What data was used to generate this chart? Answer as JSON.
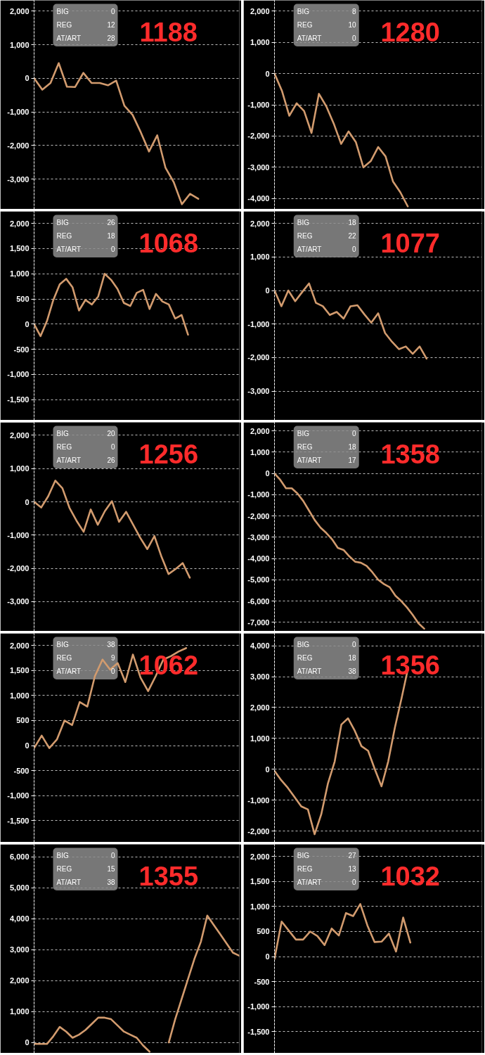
{
  "chart_data": [
    {
      "type": "line",
      "title": "1188",
      "categories": [
        null,
        null,
        null,
        null,
        null,
        null,
        null,
        null,
        null,
        null,
        null,
        null,
        null,
        null,
        null,
        null,
        null,
        null,
        null,
        null,
        null,
        null,
        null,
        null,
        null,
        null
      ],
      "color": "#d29b6e",
      "values": [
        0,
        -340,
        -140,
        450,
        -250,
        -260,
        160,
        -140,
        -140,
        -210,
        -70,
        -820,
        -1090,
        -1610,
        -2180,
        -1700,
        -2660,
        -3090,
        -3750,
        -3440,
        -3590,
        null,
        null,
        null,
        null,
        null
      ],
      "ylim": [
        -3900,
        2320
      ],
      "yticks": [
        {
          "value": 2000,
          "label": "2,000"
        },
        {
          "value": 1000,
          "label": "1,000"
        },
        0,
        {
          "value": -1000,
          "label": "-1,000"
        },
        {
          "value": -2000,
          "label": "-2,000"
        },
        {
          "value": -3000,
          "label": "-3,000"
        }
      ],
      "grid": "y",
      "tick_labels": "y",
      "annotations": [
        "BIG",
        "0",
        "REG",
        "12",
        "AT/ART",
        "28"
      ]
    },
    {
      "type": "line",
      "title": "1280",
      "categories": [
        null,
        null,
        null,
        null,
        null,
        null,
        null,
        null,
        null,
        null,
        null,
        null,
        null,
        null,
        null,
        null,
        null,
        null,
        null,
        null,
        null,
        null,
        null,
        null,
        null,
        null,
        null,
        null,
        null
      ],
      "color": "#d29b6e",
      "values": [
        0,
        -550,
        -1350,
        -950,
        -1200,
        -1900,
        -650,
        -1050,
        -1600,
        -2250,
        -1850,
        -2200,
        -3000,
        -2800,
        -2350,
        -2650,
        -3450,
        -3800,
        -4250,
        null,
        null,
        null,
        null,
        null,
        null,
        null,
        null,
        null,
        null
      ],
      "ylim": [
        -4340,
        2340
      ],
      "yticks": [
        {
          "value": 2000,
          "label": "2,000"
        },
        {
          "value": 1000,
          "label": "1,000"
        },
        0,
        {
          "value": -1000,
          "label": "-1,000"
        },
        {
          "value": -2000,
          "label": "-2,000"
        },
        {
          "value": -3000,
          "label": "-3,000"
        },
        {
          "value": -4000,
          "label": "-4,000"
        }
      ],
      "grid": "y",
      "tick_labels": "y",
      "annotations": [
        "BIG",
        "8",
        "REG",
        "10",
        "AT/ART",
        "0"
      ]
    },
    {
      "type": "line",
      "title": "1068",
      "categories": [
        null,
        null,
        null,
        null,
        null,
        null,
        null,
        null,
        null,
        null,
        null,
        null,
        null,
        null,
        null,
        null,
        null,
        null,
        null,
        null,
        null,
        null,
        null,
        null,
        null,
        null,
        null,
        null,
        null,
        null,
        null,
        null,
        null
      ],
      "color": "#d29b6e",
      "values": [
        0,
        -240,
        60,
        480,
        790,
        900,
        730,
        270,
        480,
        390,
        550,
        1000,
        880,
        700,
        420,
        360,
        620,
        680,
        300,
        600,
        450,
        390,
        110,
        180,
        -210,
        null,
        null,
        null,
        null,
        null,
        null,
        null,
        null
      ],
      "ylim": [
        -1910,
        2240
      ],
      "yticks": [
        {
          "value": 2000,
          "label": "2,000"
        },
        {
          "value": 1500,
          "label": "1,500"
        },
        {
          "value": 1000,
          "label": "1,000"
        },
        500,
        0,
        -500,
        {
          "value": -1000,
          "label": "-1,000"
        },
        {
          "value": -1500,
          "label": "-1,500"
        }
      ],
      "grid": "y",
      "tick_labels": "y",
      "annotations": [
        "BIG",
        "26",
        "REG",
        "18",
        "AT/ART",
        "0"
      ]
    },
    {
      "type": "line",
      "title": "1077",
      "categories": [
        null,
        null,
        null,
        null,
        null,
        null,
        null,
        null,
        null,
        null,
        null,
        null,
        null,
        null,
        null,
        null,
        null,
        null,
        null,
        null,
        null,
        null,
        null,
        null,
        null,
        null,
        null,
        null,
        null,
        null,
        null
      ],
      "color": "#d29b6e",
      "values": [
        0,
        -470,
        0,
        -320,
        -50,
        210,
        -370,
        -470,
        -730,
        -640,
        -840,
        -470,
        -440,
        -710,
        -960,
        -680,
        -1270,
        -1530,
        -1750,
        -1670,
        -1890,
        -1670,
        -2030,
        null,
        null,
        null,
        null,
        null,
        null,
        null,
        null
      ],
      "ylim": [
        -3870,
        2360
      ],
      "yticks": [
        {
          "value": 2000,
          "label": "2,000"
        },
        {
          "value": 1000,
          "label": "1,000"
        },
        0,
        {
          "value": -1000,
          "label": "-1,000"
        },
        {
          "value": -2000,
          "label": "-2,000"
        },
        {
          "value": -3000,
          "label": "-3,000"
        }
      ],
      "grid": "y",
      "tick_labels": "y",
      "annotations": [
        "BIG",
        "18",
        "REG",
        "22",
        "AT/ART",
        "0"
      ]
    },
    {
      "type": "line",
      "title": "1256",
      "categories": [
        null,
        null,
        null,
        null,
        null,
        null,
        null,
        null,
        null,
        null,
        null,
        null,
        null,
        null,
        null,
        null,
        null,
        null,
        null,
        null,
        null,
        null,
        null,
        null,
        null,
        null,
        null,
        null,
        null,
        null
      ],
      "color": "#d29b6e",
      "values": [
        0,
        -170,
        170,
        640,
        410,
        -180,
        -570,
        -900,
        -230,
        -690,
        -280,
        20,
        -600,
        -300,
        -690,
        -1080,
        -1420,
        -1030,
        -1650,
        -2170,
        -2020,
        -1840,
        -2280,
        null,
        null,
        null,
        null,
        null,
        null,
        null
      ],
      "ylim": [
        -3890,
        2390
      ],
      "yticks": [
        {
          "value": 2000,
          "label": "2,000"
        },
        {
          "value": 1000,
          "label": "1,000"
        },
        0,
        {
          "value": -1000,
          "label": "-1,000"
        },
        {
          "value": -2000,
          "label": "-2,000"
        },
        {
          "value": -3000,
          "label": "-3,000"
        }
      ],
      "grid": "y",
      "tick_labels": "y",
      "annotations": [
        "BIG",
        "20",
        "REG",
        "0",
        "AT/ART",
        "26"
      ]
    },
    {
      "type": "line",
      "title": "1358",
      "categories": [
        null,
        null,
        null,
        null,
        null,
        null,
        null,
        null,
        null,
        null,
        null,
        null,
        null,
        null,
        null,
        null,
        null,
        null,
        null,
        null,
        null,
        null,
        null,
        null,
        null,
        null,
        null,
        null,
        null,
        null,
        null,
        null,
        null,
        null,
        null,
        null,
        null
      ],
      "color": "#d29b6e",
      "values": [
        0,
        -300,
        -700,
        -700,
        -950,
        -1300,
        -1750,
        -2200,
        -2550,
        -2800,
        -3100,
        -3500,
        -3600,
        -3900,
        -4150,
        -4200,
        -4350,
        -4650,
        -5000,
        -5200,
        -5350,
        -5750,
        -6000,
        -6300,
        -6650,
        -7050,
        -7300,
        null,
        null,
        null,
        null,
        null,
        null,
        null,
        null,
        null,
        null
      ],
      "ylim": [
        -7420,
        2400
      ],
      "yticks": [
        {
          "value": 2000,
          "label": "2,000"
        },
        {
          "value": 1000,
          "label": "1,000"
        },
        0,
        {
          "value": -1000,
          "label": "-1,000"
        },
        {
          "value": -2000,
          "label": "-2,000"
        },
        {
          "value": -3000,
          "label": "-3,000"
        },
        {
          "value": -4000,
          "label": "-4,000"
        },
        {
          "value": -5000,
          "label": "-5,000"
        },
        {
          "value": -6000,
          "label": "-6,000"
        },
        {
          "value": -7000,
          "label": "-7,000"
        }
      ],
      "grid": "y",
      "tick_labels": "y",
      "annotations": [
        "BIG",
        "0",
        "REG",
        "18",
        "AT/ART",
        "17"
      ]
    },
    {
      "type": "line",
      "title": "1062",
      "categories": [
        null,
        null,
        null,
        null,
        null,
        null,
        null,
        null,
        null,
        null,
        null,
        null,
        null,
        null,
        null,
        null,
        null,
        null,
        null,
        null,
        null,
        null,
        null,
        null,
        null,
        null,
        null,
        null
      ],
      "color": "#d29b6e",
      "values": [
        -50,
        200,
        -50,
        120,
        500,
        410,
        870,
        780,
        1390,
        1720,
        1520,
        1650,
        1270,
        1820,
        1360,
        1090,
        1390,
        1720,
        1790,
        1880,
        1950,
        null,
        null,
        null,
        null,
        null,
        null,
        null
      ],
      "ylim": [
        -1935,
        2245
      ],
      "yticks": [
        {
          "value": 2000,
          "label": "2,000"
        },
        {
          "value": 1500,
          "label": "1,500"
        },
        {
          "value": 1000,
          "label": "1,000"
        },
        500,
        0,
        -500,
        {
          "value": -1000,
          "label": "-1,000"
        },
        {
          "value": -1500,
          "label": "-1,500"
        }
      ],
      "grid": "y",
      "tick_labels": "y",
      "annotations": [
        "BIG",
        "38",
        "REG",
        "9",
        "AT/ART",
        "0"
      ]
    },
    {
      "type": "line",
      "title": "1356",
      "categories": [
        null,
        null,
        null,
        null,
        null,
        null,
        null,
        null,
        null,
        null,
        null,
        null,
        null,
        null,
        null,
        null,
        null,
        null,
        null,
        null,
        null,
        null,
        null,
        null,
        null,
        null,
        null,
        null,
        null,
        null,
        null,
        null
      ],
      "color": "#d29b6e",
      "values": [
        -50,
        -350,
        -600,
        -900,
        -1200,
        -1300,
        -2100,
        -1450,
        -450,
        250,
        1450,
        1650,
        1250,
        750,
        600,
        0,
        -550,
        250,
        1350,
        2300,
        3300,
        null,
        null,
        null,
        null,
        null,
        null,
        null,
        null,
        null,
        null,
        null
      ],
      "ylim": [
        -2360,
        4400
      ],
      "yticks": [
        {
          "value": 4000,
          "label": "4,000"
        },
        {
          "value": 3000,
          "label": "3,000"
        },
        {
          "value": 2000,
          "label": "2,000"
        },
        {
          "value": 1000,
          "label": "1,000"
        },
        0,
        {
          "value": -1000,
          "label": "-1,000"
        },
        {
          "value": -2000,
          "label": "-2,000"
        }
      ],
      "grid": "y",
      "tick_labels": "y",
      "annotations": [
        "BIG",
        "0",
        "REG",
        "18",
        "AT/ART",
        "38"
      ]
    },
    {
      "type": "line",
      "title": "1355",
      "categories": [
        null,
        null,
        null,
        null,
        null,
        null,
        null,
        null,
        null,
        null,
        null,
        null,
        null,
        null,
        null,
        null,
        null,
        null,
        null,
        null,
        null,
        null,
        null,
        null,
        null,
        null,
        null,
        null,
        null,
        null,
        null,
        null,
        null
      ],
      "color": "#d29b6e",
      "values": [
        -50,
        -50,
        -50,
        200,
        500,
        350,
        150,
        250,
        400,
        600,
        800,
        800,
        750,
        550,
        350,
        250,
        150,
        -100,
        -300,
        null,
        null,
        0,
        750,
        1400,
        2050,
        2700,
        3250,
        4100,
        3800,
        3500,
        3200,
        2900,
        2800
      ],
      "ylim": [
        -350,
        6400
      ],
      "yticks": [
        {
          "value": 6000,
          "label": "6,000"
        },
        {
          "value": 5000,
          "label": "5,000"
        },
        {
          "value": 4000,
          "label": "4,000"
        },
        {
          "value": 3000,
          "label": "3,000"
        },
        {
          "value": 2000,
          "label": "2,000"
        },
        {
          "value": 1000,
          "label": "1,000"
        },
        0
      ],
      "grid": "y",
      "tick_labels": "y",
      "annotations": [
        "BIG",
        "0",
        "REG",
        "15",
        "AT/ART",
        "38"
      ]
    },
    {
      "type": "line",
      "title": "1032",
      "categories": [
        null,
        null,
        null,
        null,
        null,
        null,
        null,
        null,
        null,
        null,
        null,
        null,
        null,
        null,
        null,
        null,
        null,
        null,
        null,
        null,
        null,
        null,
        null,
        null,
        null,
        null,
        null,
        null,
        null,
        null
      ],
      "color": "#d29b6e",
      "values": [
        -50,
        700,
        520,
        340,
        340,
        500,
        410,
        230,
        560,
        420,
        870,
        810,
        1050,
        620,
        290,
        300,
        460,
        100,
        780,
        280,
        null,
        null,
        null,
        null,
        null,
        null,
        null,
        null,
        null,
        null
      ],
      "ylim": [
        -1935,
        2245
      ],
      "yticks": [
        {
          "value": 2000,
          "label": "2,000"
        },
        {
          "value": 1500,
          "label": "1,500"
        },
        {
          "value": 1000,
          "label": "1,000"
        },
        500,
        0,
        -500,
        {
          "value": -1000,
          "label": "-1,000"
        },
        {
          "value": -1500,
          "label": "-1,500"
        }
      ],
      "grid": "y",
      "tick_labels": "y",
      "annotations": [
        "BIG",
        "27",
        "REG",
        "13",
        "AT/ART",
        "0"
      ]
    }
  ]
}
